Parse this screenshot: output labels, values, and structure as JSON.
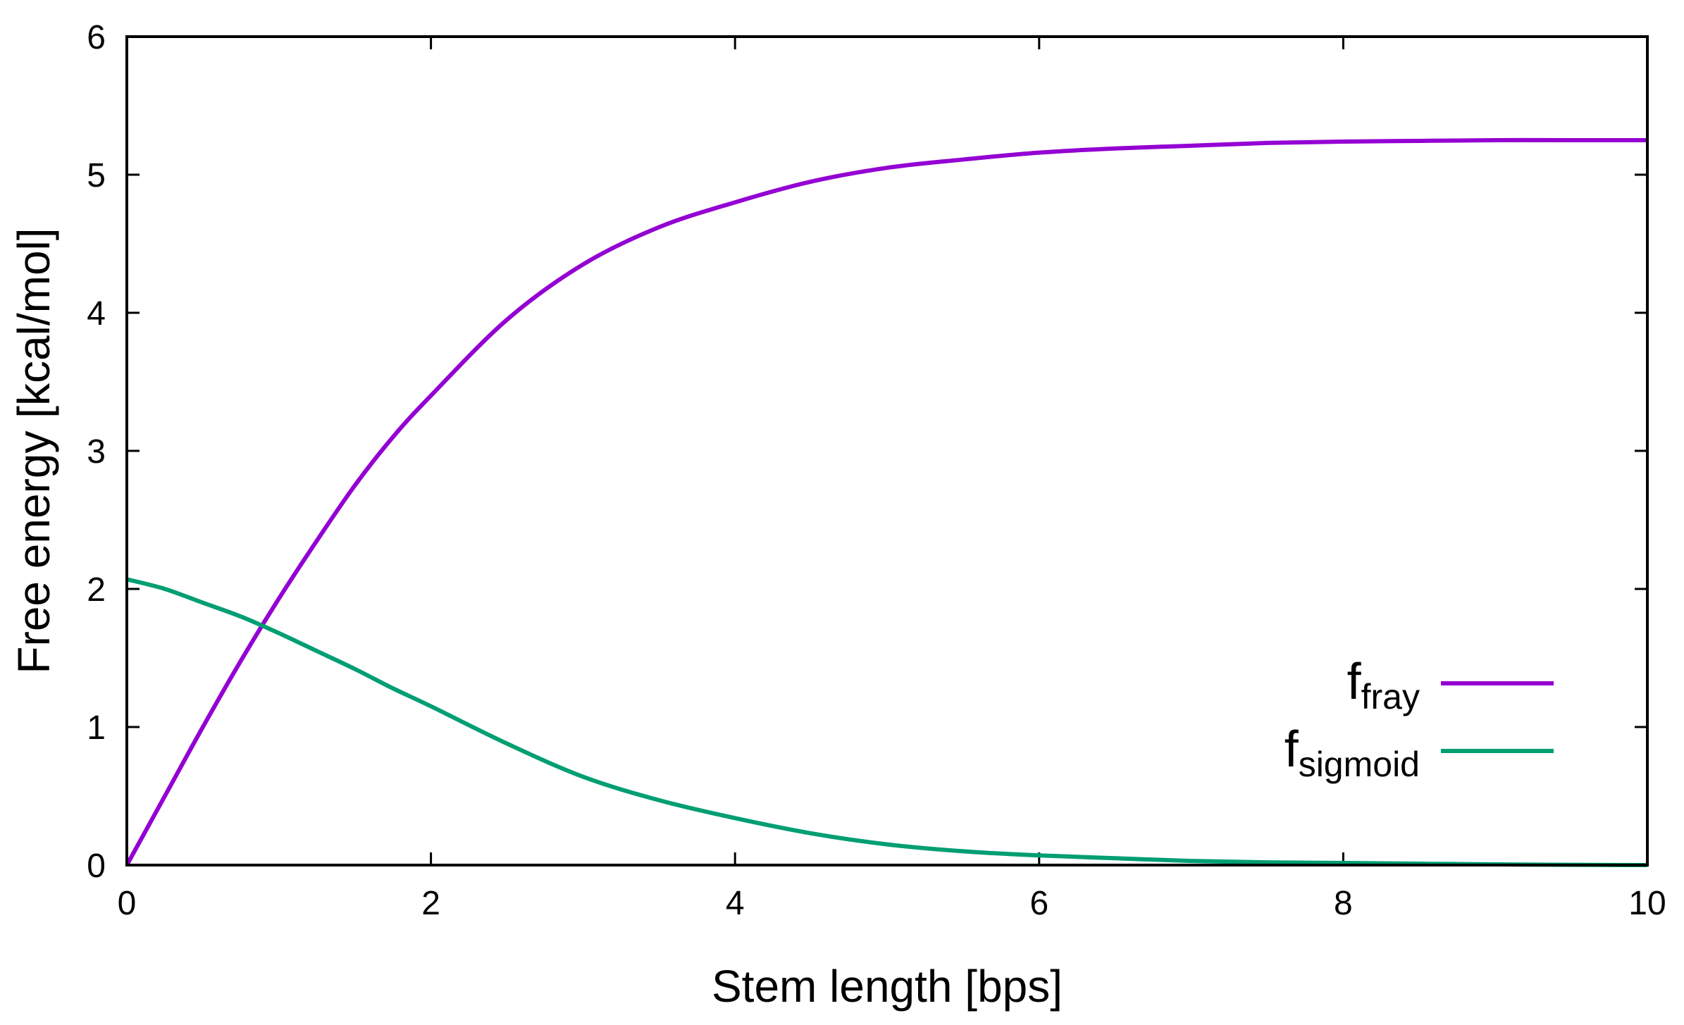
{
  "chart_data": {
    "type": "line",
    "xlabel": "Stem length [bps]",
    "ylabel": "Free energy [kcal/mol]",
    "xlim": [
      0,
      10
    ],
    "ylim": [
      0,
      6
    ],
    "xticks": [
      "0",
      "2",
      "4",
      "6",
      "8",
      "10"
    ],
    "yticks": [
      "0",
      "1",
      "2",
      "3",
      "4",
      "5",
      "6"
    ],
    "grid": false,
    "legend_position": "bottom-right",
    "series": [
      {
        "name_main": "f",
        "name_sub": "fray",
        "color": "#9400d3",
        "x": [
          0,
          0.25,
          0.5,
          0.75,
          1,
          1.25,
          1.5,
          1.75,
          2,
          2.5,
          3,
          3.5,
          4,
          4.5,
          5,
          5.5,
          6,
          6.5,
          7,
          7.5,
          8,
          8.5,
          9,
          9.5,
          10
        ],
        "y": [
          0,
          0.5,
          1.0,
          1.48,
          1.93,
          2.35,
          2.75,
          3.1,
          3.4,
          3.95,
          4.35,
          4.62,
          4.8,
          4.95,
          5.05,
          5.11,
          5.16,
          5.19,
          5.21,
          5.23,
          5.24,
          5.245,
          5.25,
          5.25,
          5.25
        ]
      },
      {
        "name_main": "f",
        "name_sub": "sigmoid",
        "color": "#009e73",
        "x": [
          0,
          0.25,
          0.5,
          0.75,
          1,
          1.25,
          1.5,
          1.75,
          2,
          2.5,
          3,
          3.5,
          4,
          4.5,
          5,
          5.5,
          6,
          6.5,
          7,
          7.5,
          8,
          8.5,
          9,
          9.5,
          10
        ],
        "y": [
          2.07,
          2.0,
          1.9,
          1.8,
          1.68,
          1.55,
          1.42,
          1.28,
          1.15,
          0.88,
          0.64,
          0.47,
          0.34,
          0.23,
          0.15,
          0.1,
          0.07,
          0.05,
          0.03,
          0.02,
          0.015,
          0.01,
          0.005,
          0.002,
          0.0
        ]
      }
    ]
  }
}
